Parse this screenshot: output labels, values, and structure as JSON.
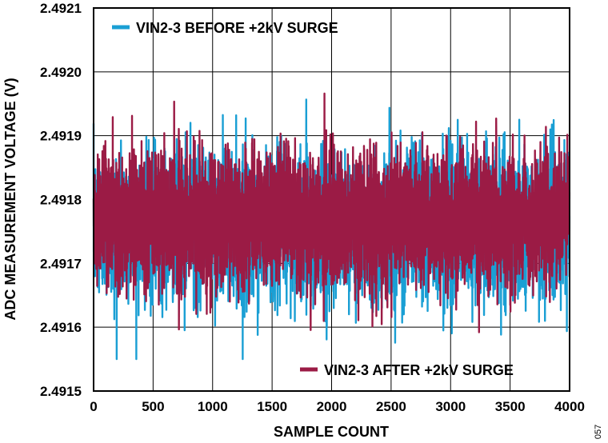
{
  "chart_data": {
    "type": "line",
    "title": "",
    "xlabel": "SAMPLE COUNT",
    "ylabel": "ADC MEASUREMENT VOLTAGE (V)",
    "xlim": [
      0,
      4000
    ],
    "ylim": [
      2.4915,
      2.4921
    ],
    "x_ticks": [
      0,
      500,
      1000,
      1500,
      2000,
      2500,
      3000,
      3500,
      4000
    ],
    "x_tick_labels": [
      "0",
      "500",
      "1000",
      "1500",
      "2000",
      "2500",
      "3000",
      "3500",
      "4000"
    ],
    "y_ticks": [
      2.4915,
      2.4916,
      2.4917,
      2.4918,
      2.4919,
      2.492,
      2.4921
    ],
    "y_tick_labels": [
      "2.4915",
      "2.4916",
      "2.4917",
      "2.4918",
      "2.4919",
      "2.4920",
      "2.4921"
    ],
    "grid": true,
    "series": [
      {
        "name": "VIN2-3 BEFORE +2kV SURGE",
        "color": "#1a9fd4",
        "mean": 2.49176,
        "min": 2.49155,
        "max": 2.49198,
        "legend_position": "top-left",
        "sample_count": 4000
      },
      {
        "name": "VIN2-3 AFTER +2kV SURGE",
        "color": "#9b1b45",
        "mean": 2.49177,
        "min": 2.49158,
        "max": 2.49197,
        "legend_position": "bottom-right",
        "sample_count": 4000
      }
    ]
  },
  "figure_id": "057"
}
